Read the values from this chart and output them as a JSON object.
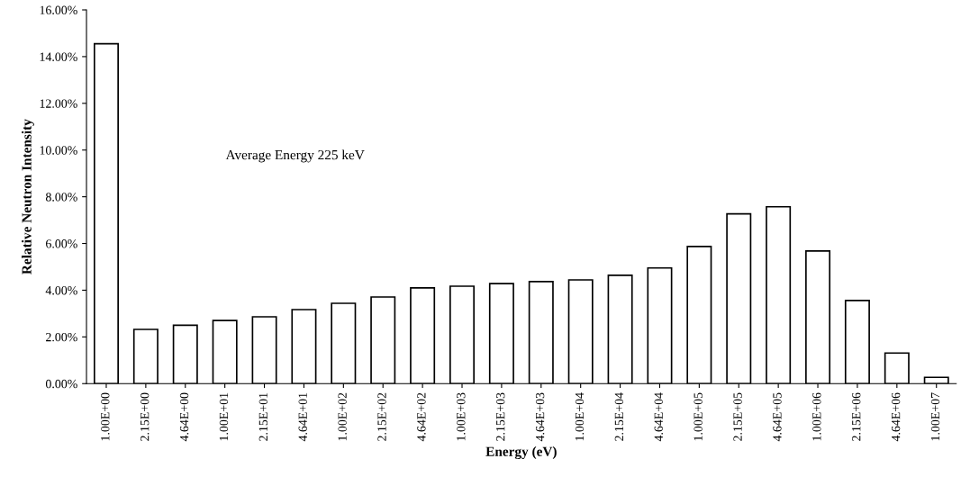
{
  "chart_data": {
    "type": "bar",
    "xlabel": "Energy (eV)",
    "ylabel": "Relative Neutron Intensity",
    "categories": [
      "1.00E+00",
      "2.15E+00",
      "4.64E+00",
      "1.00E+01",
      "2.15E+01",
      "4.64E+01",
      "1.00E+02",
      "2.15E+02",
      "4.64E+02",
      "1.00E+03",
      "2.15E+03",
      "4.64E+03",
      "1.00E+04",
      "2.15E+04",
      "4.64E+04",
      "1.00E+05",
      "2.15E+05",
      "4.64E+05",
      "1.00E+06",
      "2.15E+06",
      "4.64E+06",
      "1.00E+07"
    ],
    "values": [
      14.55,
      2.32,
      2.5,
      2.7,
      2.86,
      3.17,
      3.44,
      3.71,
      4.1,
      4.17,
      4.28,
      4.37,
      4.44,
      4.64,
      4.95,
      5.87,
      7.27,
      7.57,
      5.68,
      3.56,
      1.31,
      0.27
    ],
    "color": "#ffffff",
    "ylim": [
      0,
      16
    ],
    "yticks": [
      {
        "value": 0,
        "label": "0.00%"
      },
      {
        "value": 2,
        "label": "2.00%"
      },
      {
        "value": 4,
        "label": "4.00%"
      },
      {
        "value": 6,
        "label": "6.00%"
      },
      {
        "value": 8,
        "label": "8.00%"
      },
      {
        "value": 10,
        "label": "10.00%"
      },
      {
        "value": 12,
        "label": "12.00%"
      },
      {
        "value": 14,
        "label": "14.00%"
      },
      {
        "value": 16,
        "label": "16.00%"
      }
    ],
    "annotations": [
      "Average Energy 225 keV"
    ],
    "grid": false,
    "legend": false
  }
}
